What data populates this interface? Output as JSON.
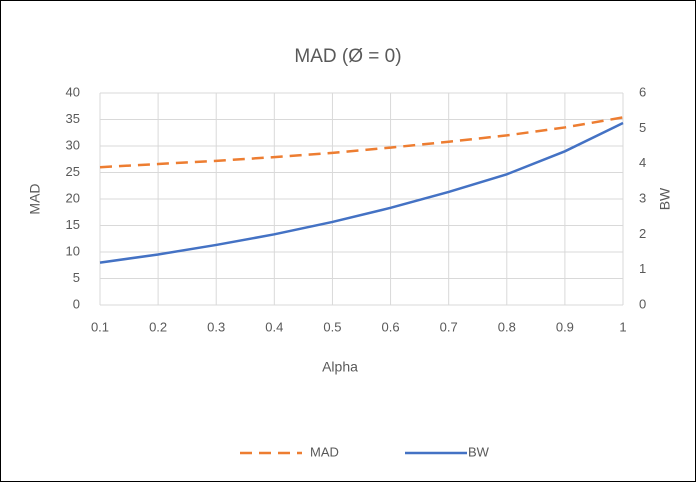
{
  "chart_data": {
    "type": "line",
    "title": "MAD (Ø = 0)",
    "x_label": "Alpha",
    "y_label": "MAD",
    "y2_label": "BW",
    "x": [
      0.1,
      0.2,
      0.3,
      0.4,
      0.5,
      0.6,
      0.7,
      0.8,
      0.9,
      1
    ],
    "xlim": [
      0.1,
      1
    ],
    "xticks": [
      0.1,
      0.2,
      0.3,
      0.4,
      0.5,
      0.6,
      0.7,
      0.8,
      0.9,
      1
    ],
    "ylim": [
      0,
      40
    ],
    "yticks": [
      0,
      5,
      10,
      15,
      20,
      25,
      30,
      35,
      40
    ],
    "y2lim": [
      0,
      6
    ],
    "y2ticks": [
      0,
      1,
      2,
      3,
      4,
      5,
      6
    ],
    "grid": true,
    "legend": "bottom",
    "series": [
      {
        "name": "MAD",
        "color": "#ed7d31",
        "dash": true,
        "values": [
          26,
          26.6,
          27.2,
          27.9,
          28.7,
          29.7,
          30.8,
          32,
          33.5,
          35.4
        ]
      },
      {
        "name": "BW",
        "color": "#4472c4",
        "axis": "y2",
        "values": [
          1.2,
          1.43,
          1.7,
          2.0,
          2.35,
          2.75,
          3.2,
          3.7,
          4.35,
          5.15
        ]
      }
    ]
  }
}
